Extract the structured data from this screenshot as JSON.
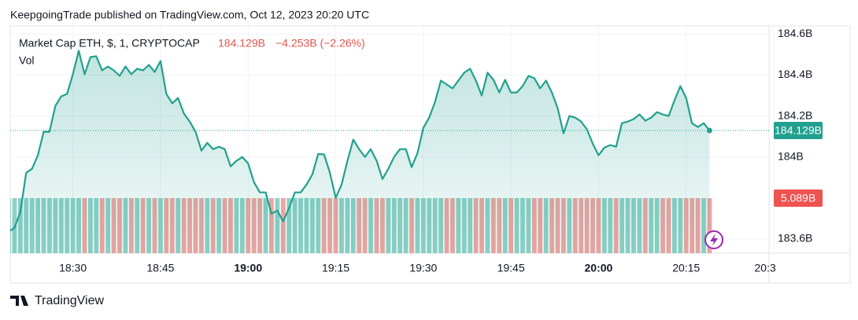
{
  "header": {
    "text": "KeepgoingTrade published on TradingView.com, Oct 12, 2023 20:20 UTC"
  },
  "footer": {
    "brand": "TradingView"
  },
  "chart_data": {
    "type": "area",
    "change": "−4.253B (−2.26%)",
    "change_color": "#e5534b",
    "categories": [
      null,
      null,
      null,
      null,
      null,
      null,
      null,
      null,
      null,
      null,
      null,
      "18:30",
      null,
      null,
      null,
      null,
      null,
      null,
      null,
      null,
      null,
      null,
      null,
      null,
      null,
      null,
      "18:45",
      null,
      null,
      null,
      null,
      null,
      null,
      null,
      null,
      null,
      null,
      null,
      null,
      null,
      null,
      "19:00",
      null,
      null,
      null,
      null,
      null,
      null,
      null,
      null,
      null,
      null,
      null,
      null,
      null,
      null,
      "19:15",
      null,
      null,
      null,
      null,
      null,
      null,
      null,
      null,
      null,
      null,
      null,
      null,
      null,
      null,
      "19:30",
      null,
      null,
      null,
      null,
      null,
      null,
      null,
      null,
      null,
      null,
      null,
      null,
      null,
      null,
      "19:45",
      null,
      null,
      null,
      null,
      null,
      null,
      null,
      null,
      null,
      null,
      null,
      null,
      null,
      null,
      "20:00",
      null,
      null,
      null,
      null,
      null,
      null,
      null,
      null,
      null,
      null,
      null,
      null,
      null,
      null,
      "20:15",
      null,
      null,
      null,
      null,
      null,
      null,
      null,
      null,
      null,
      null,
      null,
      null,
      null,
      null,
      "20:3"
    ],
    "series": [
      {
        "name": "Market Cap ETH, $, 1, CRYPTOCAP",
        "color": "#22a08f",
        "last_label": "184.129B",
        "values": [
          183.635,
          183.654,
          183.731,
          183.923,
          183.942,
          184.008,
          184.123,
          184.123,
          184.25,
          184.296,
          184.308,
          184.404,
          184.519,
          184.404,
          184.488,
          184.492,
          184.423,
          184.442,
          184.423,
          184.396,
          184.442,
          184.404,
          184.431,
          184.423,
          184.45,
          184.415,
          184.469,
          184.308,
          184.262,
          184.288,
          184.212,
          184.173,
          184.123,
          184.031,
          184.069,
          184.038,
          184.05,
          184.038,
          183.954,
          183.981,
          184.0,
          183.969,
          183.877,
          183.827,
          183.827,
          183.723,
          183.738,
          183.685,
          183.75,
          183.827,
          183.827,
          183.865,
          183.915,
          184.015,
          184.012,
          183.923,
          183.8,
          183.865,
          183.981,
          184.085,
          184.038,
          184.0,
          184.038,
          183.981,
          183.892,
          183.942,
          184.0,
          184.038,
          184.038,
          183.95,
          184.019,
          184.142,
          184.192,
          184.269,
          184.373,
          184.354,
          184.335,
          184.373,
          184.412,
          184.431,
          184.373,
          184.3,
          184.412,
          184.377,
          184.315,
          184.377,
          184.315,
          184.315,
          184.346,
          184.396,
          184.385,
          184.335,
          184.373,
          184.315,
          184.238,
          184.115,
          184.2,
          184.192,
          184.173,
          184.135,
          184.065,
          184.008,
          184.046,
          184.058,
          184.05,
          184.165,
          184.173,
          184.185,
          184.208,
          184.177,
          184.192,
          184.219,
          184.208,
          184.2,
          184.277,
          184.346,
          184.288,
          184.165,
          184.146,
          184.165,
          184.129,
          null,
          null,
          null,
          null,
          null,
          null,
          null,
          null,
          null,
          null,
          null
        ]
      },
      {
        "name": "Vol",
        "up_color": "#8dd0c6",
        "down_color": "#eea4a1",
        "label_color": "#ef5350",
        "last_label": "5.089B",
        "values": [
          5.089,
          5.089,
          5.089,
          5.089,
          5.089,
          5.089,
          5.089,
          5.089,
          5.089,
          5.089,
          5.089,
          5.089,
          5.089,
          5.089,
          5.089,
          5.089,
          5.089,
          5.089,
          5.089,
          5.089,
          5.089,
          5.089,
          5.089,
          5.089,
          5.089,
          5.089,
          5.089,
          5.089,
          5.089,
          5.089,
          5.089,
          5.089,
          5.089,
          5.089,
          5.089,
          5.089,
          5.089,
          5.089,
          5.089,
          5.089,
          5.089,
          5.089,
          5.089,
          5.089,
          5.089,
          5.089,
          5.089,
          5.089,
          5.089,
          5.089,
          5.089,
          5.089,
          5.089,
          5.089,
          5.089,
          5.089,
          5.089,
          5.089,
          5.089,
          5.089,
          5.089,
          5.089,
          5.089,
          5.089,
          5.089,
          5.089,
          5.089,
          5.089,
          5.089,
          5.089,
          5.089,
          5.089,
          5.089,
          5.089,
          5.089,
          5.089,
          5.089,
          5.089,
          5.089,
          5.089,
          5.089,
          5.089,
          5.089,
          5.089,
          5.089,
          5.089,
          5.089,
          5.089,
          5.089,
          5.089,
          5.089,
          5.089,
          5.089,
          5.089,
          5.089,
          5.089,
          5.089,
          5.089,
          5.089,
          5.089,
          5.089,
          5.089,
          5.089,
          5.089,
          5.089,
          5.089,
          5.089,
          5.089,
          5.089,
          5.089,
          5.089,
          5.089,
          5.089,
          5.089,
          5.089,
          5.089,
          5.089,
          5.089,
          5.089,
          5.089,
          5.089,
          null,
          null,
          null,
          null,
          null,
          null,
          null,
          null,
          null,
          null,
          null
        ]
      }
    ],
    "ylim": [
      183.53,
      184.64
    ],
    "volume_lim": [
      0,
      21
    ],
    "yticks": [
      {
        "value": 183.6,
        "label": "183.6B"
      },
      {
        "value": 184,
        "label": "184B"
      },
      {
        "value": 184.2,
        "label": "184.2B"
      },
      {
        "value": 184.4,
        "label": "184.4B"
      },
      {
        "value": 184.6,
        "label": "184.6B"
      }
    ],
    "grid": true
  }
}
